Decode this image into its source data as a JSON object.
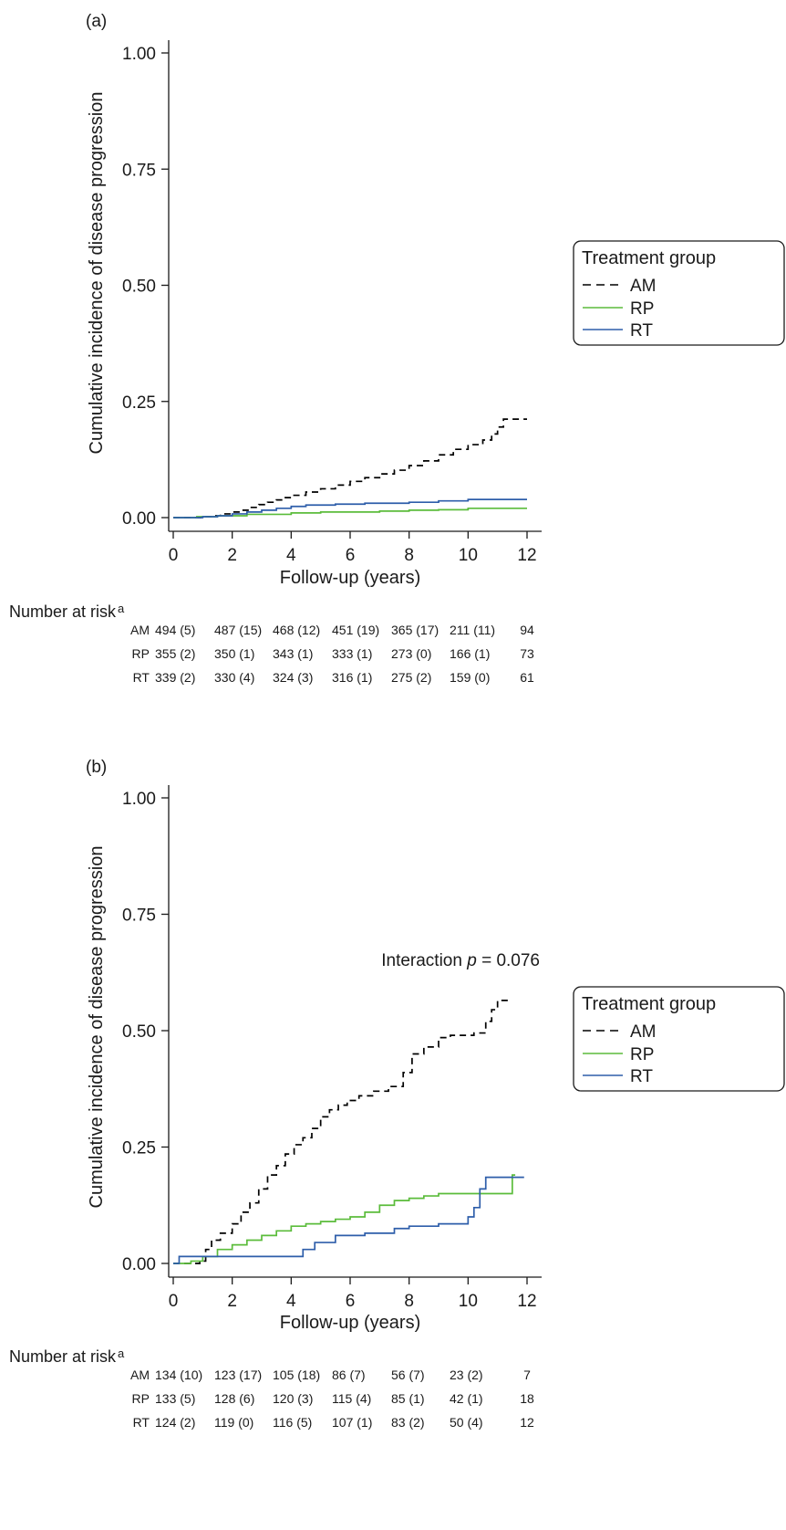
{
  "chart_data": [
    {
      "type": "line",
      "panel_label": "(a)",
      "xlabel": "Follow-up (years)",
      "ylabel": "Cumulative incidence of disease progression",
      "xlim": [
        0,
        12
      ],
      "ylim": [
        0,
        1
      ],
      "xticks": [
        "0",
        "2",
        "4",
        "6",
        "8",
        "10",
        "12"
      ],
      "yticks": [
        "0.00",
        "0.25",
        "0.50",
        "0.75",
        "1.00"
      ],
      "annotation_prefix": "",
      "annotation_italic": "",
      "annotation_suffix": "",
      "legend": {
        "title": "Treatment group",
        "position": "right",
        "entries": [
          "AM",
          "RP",
          "RT"
        ]
      },
      "series": [
        {
          "name": "AM",
          "color": "#000000",
          "dash": true,
          "x": [
            0,
            1,
            1.3,
            1.6,
            2.0,
            2.3,
            2.6,
            2.9,
            3.2,
            3.5,
            3.8,
            4.0,
            4.5,
            5.0,
            5.5,
            6.0,
            6.5,
            7.0,
            7.5,
            8.0,
            8.5,
            9.0,
            9.5,
            10.0,
            10.5,
            10.8,
            11.0,
            11.2,
            12.0
          ],
          "y": [
            0,
            0.002,
            0.004,
            0.008,
            0.012,
            0.016,
            0.022,
            0.028,
            0.033,
            0.038,
            0.043,
            0.048,
            0.055,
            0.062,
            0.07,
            0.078,
            0.086,
            0.094,
            0.102,
            0.112,
            0.122,
            0.135,
            0.147,
            0.157,
            0.167,
            0.18,
            0.195,
            0.212,
            0.212
          ]
        },
        {
          "name": "RP",
          "color": "#5bbc3b",
          "dash": false,
          "x": [
            0,
            0.8,
            1.5,
            2.5,
            4.0,
            5.0,
            7.0,
            8.0,
            9.0,
            10.0,
            12.0
          ],
          "y": [
            0,
            0.002,
            0.004,
            0.007,
            0.01,
            0.012,
            0.014,
            0.016,
            0.017,
            0.02,
            0.02
          ]
        },
        {
          "name": "RT",
          "color": "#2e5eaa",
          "dash": false,
          "x": [
            0,
            1.0,
            1.5,
            2.0,
            2.5,
            3.0,
            3.5,
            4.0,
            4.5,
            5.5,
            6.5,
            8.0,
            9.0,
            10.0,
            11.0,
            12.0
          ],
          "y": [
            0,
            0.002,
            0.004,
            0.008,
            0.012,
            0.016,
            0.02,
            0.024,
            0.027,
            0.029,
            0.031,
            0.033,
            0.036,
            0.039,
            0.039,
            0.039
          ]
        }
      ],
      "risk_table": {
        "title": "Number at risk",
        "title_superscript": "a",
        "rows": [
          {
            "group": "AM",
            "cells": [
              "494 (5)",
              "487 (15)",
              "468 (12)",
              "451 (19)",
              "365 (17)",
              "211 (11)",
              "94"
            ]
          },
          {
            "group": "RP",
            "cells": [
              "355 (2)",
              "350 (1)",
              "343 (1)",
              "333 (1)",
              "273 (0)",
              "166 (1)",
              "73"
            ]
          },
          {
            "group": "RT",
            "cells": [
              "339 (2)",
              "330 (4)",
              "324 (3)",
              "316 (1)",
              "275 (2)",
              "159 (0)",
              "61"
            ]
          }
        ]
      }
    },
    {
      "type": "line",
      "panel_label": "(b)",
      "xlabel": "Follow-up (years)",
      "ylabel": "Cumulative incidence of disease progression",
      "xlim": [
        0,
        12
      ],
      "ylim": [
        0,
        1
      ],
      "xticks": [
        "0",
        "2",
        "4",
        "6",
        "8",
        "10",
        "12"
      ],
      "yticks": [
        "0.00",
        "0.25",
        "0.50",
        "0.75",
        "1.00"
      ],
      "annotation_prefix": "Interaction ",
      "annotation_italic": "p",
      "annotation_suffix": " = 0.076",
      "legend": {
        "title": "Treatment group",
        "position": "right",
        "entries": [
          "AM",
          "RP",
          "RT"
        ]
      },
      "series": [
        {
          "name": "AM",
          "color": "#000000",
          "dash": true,
          "x": [
            0,
            0.6,
            0.9,
            1.1,
            1.3,
            1.6,
            2.0,
            2.3,
            2.6,
            2.9,
            3.2,
            3.5,
            3.8,
            4.1,
            4.4,
            4.7,
            5.0,
            5.3,
            5.6,
            5.9,
            6.3,
            6.8,
            7.3,
            7.8,
            8.1,
            8.5,
            9.0,
            9.4,
            10.2,
            10.6,
            10.8,
            11.0,
            11.5
          ],
          "y": [
            0,
            0,
            0.005,
            0.03,
            0.05,
            0.065,
            0.085,
            0.11,
            0.13,
            0.16,
            0.19,
            0.21,
            0.235,
            0.255,
            0.27,
            0.29,
            0.315,
            0.33,
            0.34,
            0.35,
            0.36,
            0.37,
            0.38,
            0.41,
            0.45,
            0.465,
            0.485,
            0.49,
            0.495,
            0.52,
            0.545,
            0.565,
            0.565
          ]
        },
        {
          "name": "RP",
          "color": "#5bbc3b",
          "dash": false,
          "x": [
            0,
            0.6,
            1.0,
            1.5,
            2.0,
            2.5,
            3.0,
            3.5,
            4.0,
            4.5,
            5.0,
            5.5,
            6.0,
            6.5,
            7.0,
            7.5,
            8.0,
            8.5,
            9.0,
            10.0,
            11.0,
            11.5,
            11.6
          ],
          "y": [
            0,
            0.005,
            0.015,
            0.03,
            0.04,
            0.05,
            0.06,
            0.07,
            0.08,
            0.085,
            0.09,
            0.095,
            0.1,
            0.11,
            0.125,
            0.135,
            0.14,
            0.145,
            0.15,
            0.15,
            0.15,
            0.19,
            0.19
          ]
        },
        {
          "name": "RT",
          "color": "#2e5eaa",
          "dash": false,
          "x": [
            0,
            0.2,
            1.0,
            4.1,
            4.4,
            4.8,
            5.5,
            6.5,
            7.5,
            8.0,
            9.0,
            10.0,
            10.2,
            10.4,
            10.6,
            11.5,
            11.9
          ],
          "y": [
            0,
            0.015,
            0.015,
            0.015,
            0.03,
            0.045,
            0.06,
            0.065,
            0.075,
            0.08,
            0.085,
            0.1,
            0.12,
            0.16,
            0.185,
            0.185,
            0.185
          ]
        }
      ],
      "risk_table": {
        "title": "Number at risk",
        "title_superscript": "a",
        "rows": [
          {
            "group": "AM",
            "cells": [
              "134 (10)",
              "123 (17)",
              "105 (18)",
              "86 (7)",
              "56 (7)",
              "23 (2)",
              "7"
            ]
          },
          {
            "group": "RP",
            "cells": [
              "133 (5)",
              "128 (6)",
              "120 (3)",
              "115 (4)",
              "85 (1)",
              "42 (1)",
              "18"
            ]
          },
          {
            "group": "RT",
            "cells": [
              "124 (2)",
              "119 (0)",
              "116 (5)",
              "107 (1)",
              "83 (2)",
              "50 (4)",
              "12"
            ]
          }
        ]
      }
    }
  ]
}
